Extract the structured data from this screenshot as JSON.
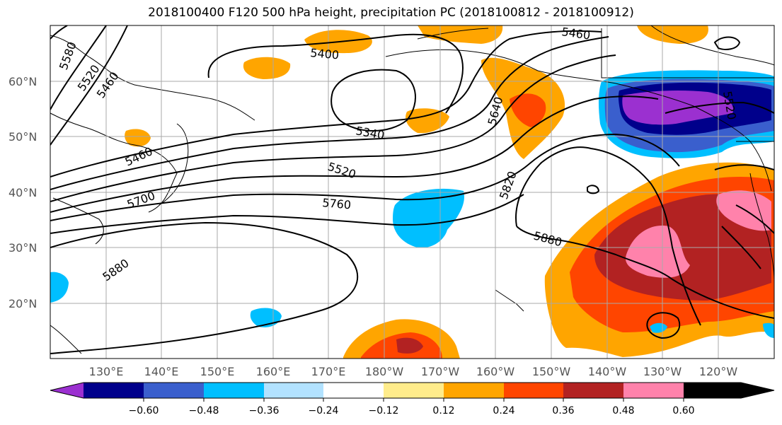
{
  "header": {
    "title": "2018100400 F120 500 hPa height, precipitation PC (2018100812 - 2018100912)"
  },
  "map": {
    "lat_ticks": [
      "60°N",
      "50°N",
      "40°N",
      "30°N",
      "20°N"
    ],
    "lon_ticks": [
      "130°E",
      "140°E",
      "150°E",
      "160°E",
      "170°E",
      "180°W",
      "170°W",
      "160°W",
      "150°W",
      "140°W",
      "130°W",
      "120°W"
    ],
    "contour_labels": [
      "5580",
      "5520",
      "5460",
      "5400",
      "5340",
      "5460",
      "5520",
      "5700",
      "5760",
      "5640",
      "5820",
      "5880",
      "5880",
      "5460",
      "5520"
    ]
  },
  "colorbar": {
    "colors": [
      "#9b30d0",
      "#00008b",
      "#3a5fcd",
      "#00bfff",
      "#b2e2ff",
      "#ffffff",
      "#ffec8b",
      "#ffa500",
      "#ff4500",
      "#b22222",
      "#ff82ab"
    ],
    "tick_labels": [
      "−0.60",
      "−0.48",
      "−0.36",
      "−0.24",
      "−0.12",
      "0.12",
      "0.24",
      "0.36",
      "0.48",
      "0.60"
    ]
  }
}
